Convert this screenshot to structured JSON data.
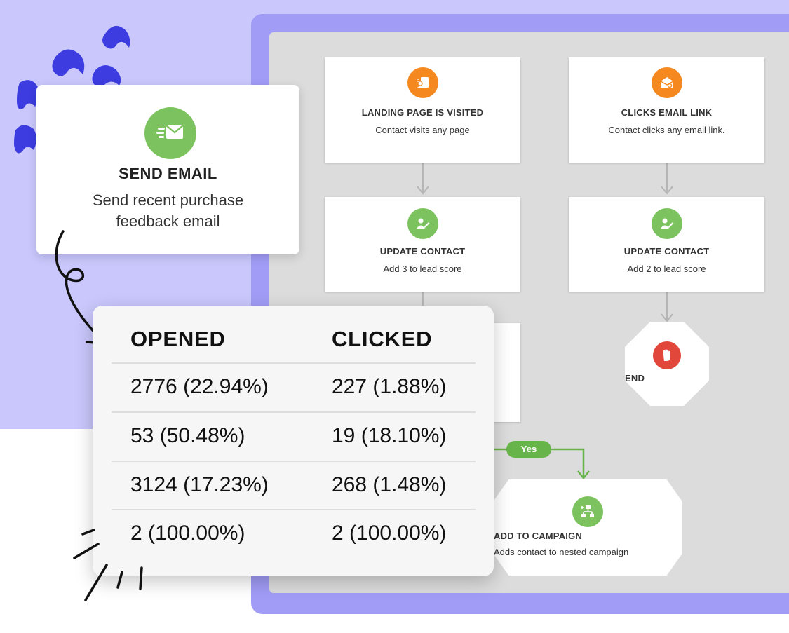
{
  "send_email": {
    "title": "SEND EMAIL",
    "description": "Send recent purchase feedback email",
    "icon": "email-send-icon",
    "accent": "#7cc35f"
  },
  "stats": {
    "headers": [
      "OPENED",
      "CLICKED"
    ],
    "rows": [
      [
        "2776 (22.94%)",
        "227 (1.88%)"
      ],
      [
        "53 (50.48%)",
        "19 (18.10%)"
      ],
      [
        "3124 (17.23%)",
        "268 (1.48%)"
      ],
      [
        "2 (100.00%)",
        "2 (100.00%)"
      ]
    ]
  },
  "workflow": {
    "trigger_left": {
      "title": "LANDING PAGE IS VISITED",
      "description": "Contact visits any page",
      "icon": "landing-page-icon",
      "color": "#f5891f"
    },
    "trigger_right": {
      "title": "CLICKS EMAIL LINK",
      "description": "Contact clicks any email link.",
      "icon": "email-click-icon",
      "color": "#f5891f"
    },
    "update_left": {
      "title": "UPDATE CONTACT",
      "description": "Add 3 to lead score",
      "icon": "edit-contact-icon",
      "color": "#7cc35f"
    },
    "update_right": {
      "title": "UPDATE CONTACT",
      "description": "Add 2 to lead score",
      "icon": "edit-contact-icon",
      "color": "#7cc35f"
    },
    "end": {
      "title": "END",
      "icon": "stop-hand-icon",
      "color": "#e2473b"
    },
    "yes_label": "Yes",
    "add_campaign": {
      "title": "ADD TO CAMPAIGN",
      "description": "Adds contact to nested campaign",
      "icon": "campaign-tree-icon",
      "color": "#7cc35f"
    }
  },
  "colors": {
    "background_lavender": "#c9c7fb",
    "canvas_frame": "#a19cf6",
    "canvas": "#dcdcdc",
    "connector": "#b5b5b5",
    "yes_connector": "#67b54a"
  }
}
